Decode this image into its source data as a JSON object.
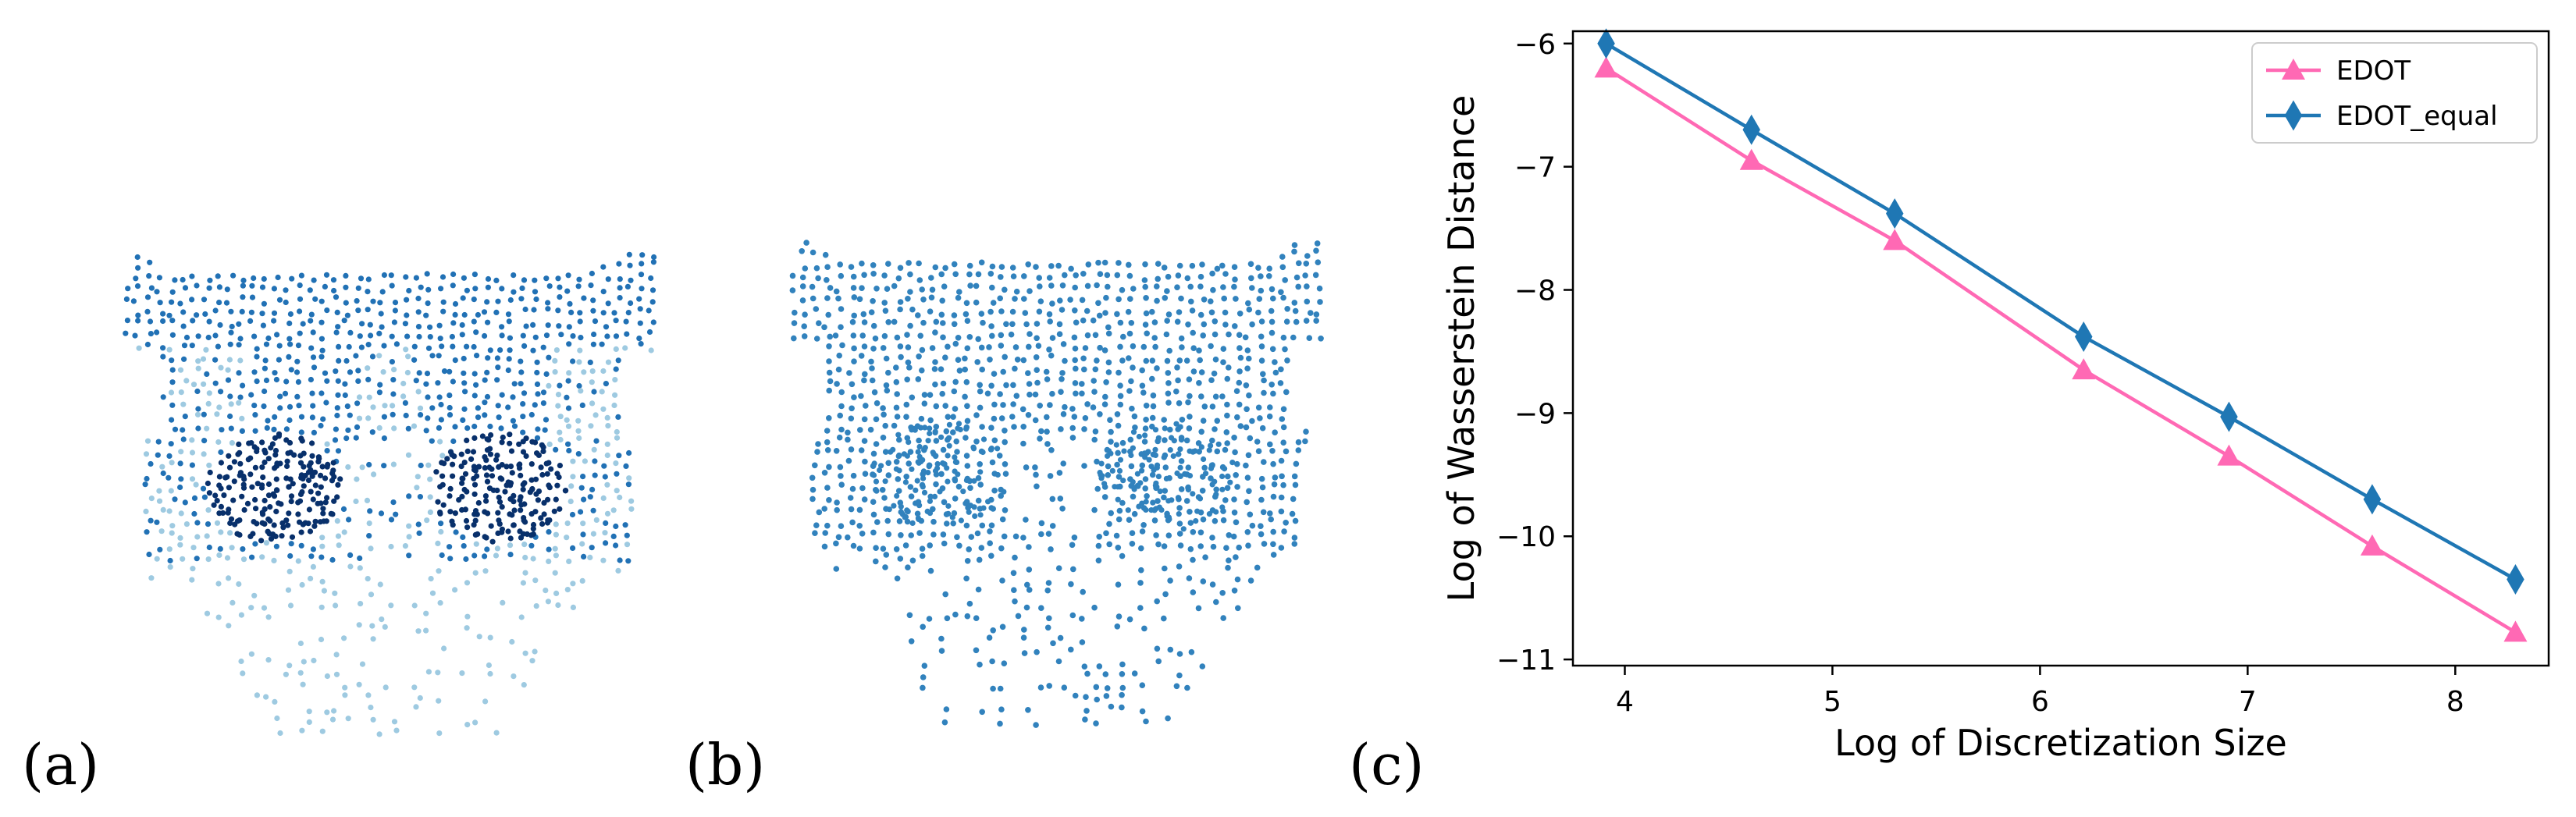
{
  "panels": {
    "a_label": "(a)",
    "b_label": "(b)",
    "c_label": "(c)"
  },
  "scatter_a": {
    "color_dark": "#08306b",
    "color_mid": "#2171b5",
    "color_light": "#9ecae1"
  },
  "scatter_b": {
    "color": "#3182bd"
  },
  "chart_data": {
    "type": "line",
    "title": "",
    "xlabel": "Log of Discretization Size",
    "ylabel": "Log of Wasserstein Distance",
    "xlim": [
      3.75,
      8.45
    ],
    "ylim": [
      -11.05,
      -5.9
    ],
    "xticks": [
      4,
      5,
      6,
      7,
      8
    ],
    "yticks": [
      -6,
      -7,
      -8,
      -9,
      -10,
      -11
    ],
    "legend_position": "top-right",
    "series": [
      {
        "name": "EDOT",
        "color": "#ff69b4",
        "marker": "triangle",
        "x": [
          3.91,
          4.61,
          5.3,
          6.21,
          6.91,
          7.6,
          8.29
        ],
        "y": [
          -6.2,
          -6.95,
          -7.6,
          -8.65,
          -9.35,
          -10.08,
          -10.78
        ]
      },
      {
        "name": "EDOT_equal",
        "color": "#1f77b4",
        "marker": "diamond",
        "x": [
          3.91,
          4.61,
          5.3,
          6.21,
          6.91,
          7.6,
          8.29
        ],
        "y": [
          -6.0,
          -6.7,
          -7.38,
          -8.38,
          -9.03,
          -9.7,
          -10.35
        ]
      }
    ]
  }
}
